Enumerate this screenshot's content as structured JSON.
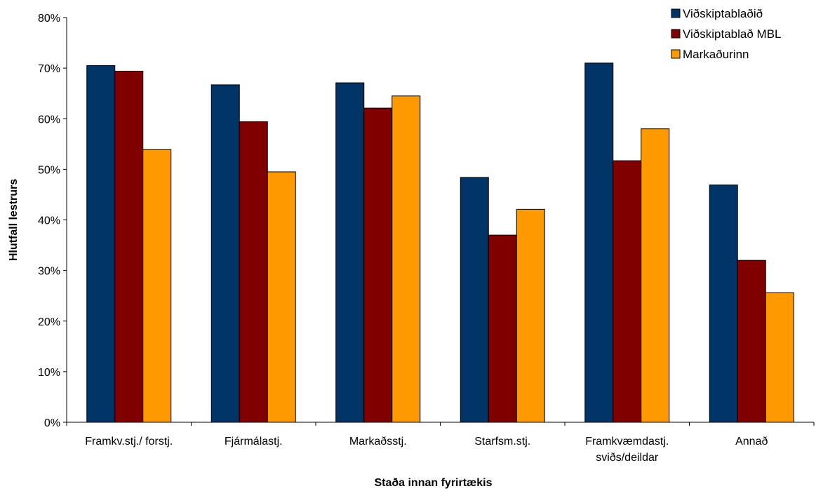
{
  "chart_data": {
    "type": "bar",
    "title": "",
    "xlabel": "Staða innan fyrirtækis",
    "ylabel": "Hlutfall lestrurs",
    "ylim": [
      0,
      80
    ],
    "y_ticks": [
      "0%",
      "10%",
      "20%",
      "30%",
      "40%",
      "50%",
      "60%",
      "70%",
      "80%"
    ],
    "y_tick_values": [
      0,
      10,
      20,
      30,
      40,
      50,
      60,
      70,
      80
    ],
    "grid": false,
    "legend_position": "top-right",
    "categories": [
      [
        "Framkv.stj./ forstj."
      ],
      [
        "Fjármálastj."
      ],
      [
        "Markaðsstj."
      ],
      [
        "Starfsm.stj."
      ],
      [
        "Framkvæmdastj.",
        "sviðs/deildar"
      ],
      [
        "Annað"
      ]
    ],
    "series": [
      {
        "name": "Viðskiptablaðið",
        "color": "#003366",
        "values": [
          70.5,
          66.7,
          67.1,
          48.4,
          71.0,
          46.9
        ]
      },
      {
        "name": "Viðskiptablað MBL",
        "color": "#800000",
        "values": [
          69.4,
          59.4,
          62.1,
          37.0,
          51.7,
          32.0
        ]
      },
      {
        "name": "Markaðurinn",
        "color": "#FF9900",
        "values": [
          53.9,
          49.5,
          64.5,
          42.1,
          58.0,
          25.6
        ]
      }
    ]
  }
}
